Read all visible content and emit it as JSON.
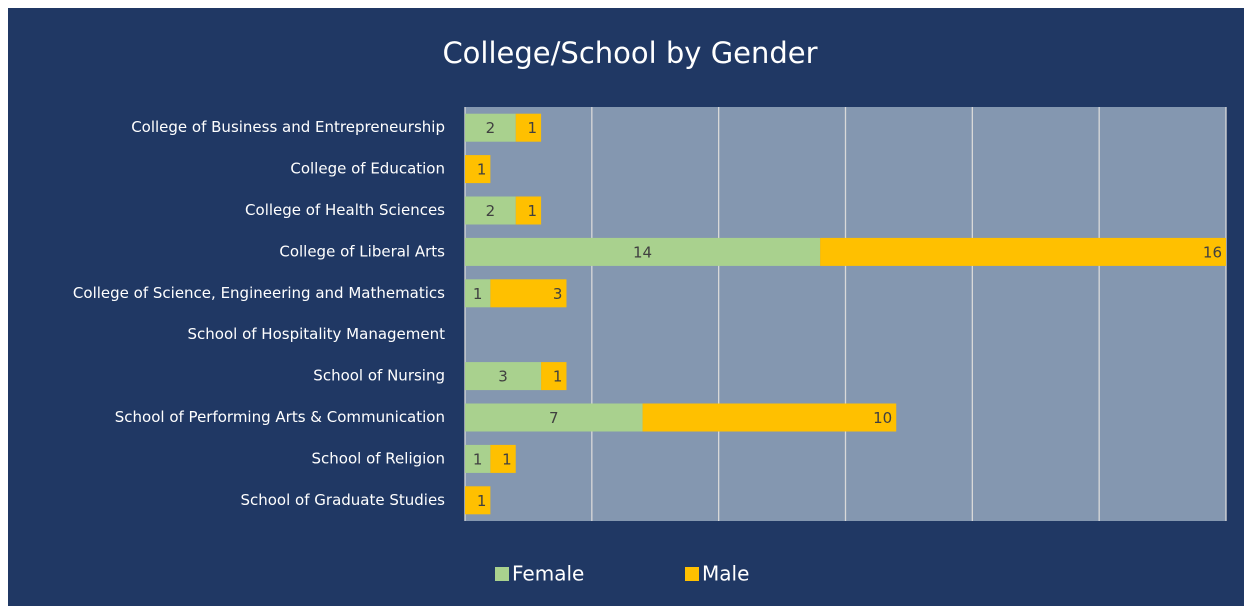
{
  "chart_data": {
    "type": "bar",
    "orientation": "horizontal",
    "stacked": true,
    "title": "College/School by Gender",
    "categories": [
      "College of Business and Entrepreneurship",
      "College of Education",
      "College of Health Sciences",
      "College of Liberal Arts",
      "College of Science, Engineering and Mathematics",
      "School of Hospitality Management",
      "School of Nursing",
      "School of Performing Arts & Communication",
      "School of Religion",
      "School of Graduate Studies"
    ],
    "series": [
      {
        "name": "Female",
        "color": "#a9d18e",
        "values": [
          2,
          null,
          2,
          14,
          1,
          null,
          3,
          7,
          1,
          null
        ]
      },
      {
        "name": "Male",
        "color": "#ffc000",
        "values": [
          1,
          1,
          1,
          16,
          3,
          null,
          1,
          10,
          1,
          1
        ]
      }
    ],
    "xlim": [
      0,
      30
    ],
    "xticks": [
      0,
      5,
      10,
      15,
      20,
      25,
      30
    ],
    "grid": true,
    "legend": "bottom"
  }
}
